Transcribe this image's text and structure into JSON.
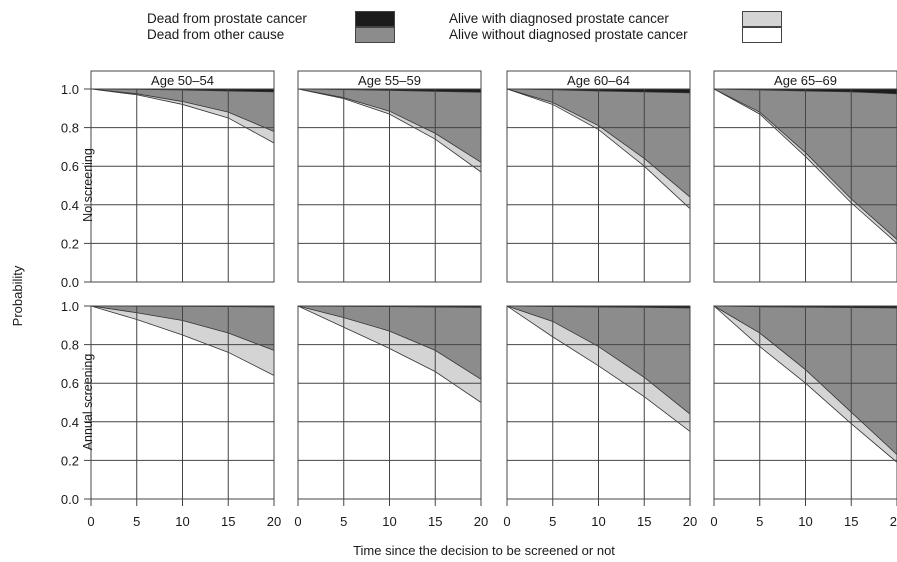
{
  "legend": {
    "items": [
      {
        "label": "Dead from prostate cancer",
        "color": "#1c1c1c"
      },
      {
        "label": "Dead from other cause",
        "color": "#8c8c8c"
      },
      {
        "label": "Alive with diagnosed prostate cancer",
        "color": "#d4d4d4"
      },
      {
        "label": "Alive without diagnosed prostate cancer",
        "color": "#ffffff"
      }
    ]
  },
  "chart_data": {
    "type": "area",
    "xlabel": "Time since the decision to be screened or not",
    "ylabel": "Probability",
    "xlim": [
      0,
      20
    ],
    "ylim": [
      0,
      1
    ],
    "x_ticks": [
      0,
      5,
      10,
      15,
      20
    ],
    "y_ticks": [
      "0.0",
      "0.2",
      "0.4",
      "0.6",
      "0.8",
      "1.0"
    ],
    "columns": [
      "Age 50–54",
      "Age 55–59",
      "Age 60–64",
      "Age 65–69"
    ],
    "rows": [
      "No screening",
      "Annual screening"
    ],
    "grid": true,
    "x": [
      0,
      5,
      10,
      15,
      20
    ],
    "panels": [
      {
        "row": "No screening",
        "column": "Age 50–54",
        "alive_without": [
          1.0,
          0.97,
          0.92,
          0.85,
          0.72
        ],
        "alive_total": [
          1.0,
          0.975,
          0.935,
          0.88,
          0.78
        ],
        "alive_or_pc_death": [
          1.0,
          0.998,
          0.995,
          0.99,
          0.985
        ]
      },
      {
        "row": "No screening",
        "column": "Age 55–59",
        "alive_without": [
          1.0,
          0.95,
          0.87,
          0.74,
          0.57
        ],
        "alive_total": [
          1.0,
          0.955,
          0.885,
          0.77,
          0.62
        ],
        "alive_or_pc_death": [
          1.0,
          0.997,
          0.993,
          0.988,
          0.983
        ]
      },
      {
        "row": "No screening",
        "column": "Age 60–64",
        "alive_without": [
          1.0,
          0.92,
          0.79,
          0.6,
          0.38
        ],
        "alive_total": [
          1.0,
          0.93,
          0.81,
          0.64,
          0.44
        ],
        "alive_or_pc_death": [
          1.0,
          0.996,
          0.99,
          0.985,
          0.98
        ]
      },
      {
        "row": "No screening",
        "column": "Age 65–69",
        "alive_without": [
          1.0,
          0.87,
          0.65,
          0.41,
          0.2
        ],
        "alive_total": [
          1.0,
          0.88,
          0.67,
          0.43,
          0.22
        ],
        "alive_or_pc_death": [
          1.0,
          0.995,
          0.99,
          0.985,
          0.975
        ]
      },
      {
        "row": "Annual screening",
        "column": "Age 50–54",
        "alive_without": [
          1.0,
          0.93,
          0.85,
          0.76,
          0.64
        ],
        "alive_total": [
          1.0,
          0.965,
          0.925,
          0.86,
          0.77
        ],
        "alive_or_pc_death": [
          1.0,
          0.999,
          0.998,
          0.997,
          0.995
        ]
      },
      {
        "row": "Annual screening",
        "column": "Age 55–59",
        "alive_without": [
          1.0,
          0.89,
          0.78,
          0.66,
          0.5
        ],
        "alive_total": [
          1.0,
          0.94,
          0.87,
          0.77,
          0.62
        ],
        "alive_or_pc_death": [
          1.0,
          0.998,
          0.997,
          0.995,
          0.993
        ]
      },
      {
        "row": "Annual screening",
        "column": "Age 60–64",
        "alive_without": [
          1.0,
          0.84,
          0.69,
          0.53,
          0.35
        ],
        "alive_total": [
          1.0,
          0.92,
          0.79,
          0.63,
          0.44
        ],
        "alive_or_pc_death": [
          1.0,
          0.997,
          0.995,
          0.993,
          0.99
        ]
      },
      {
        "row": "Annual screening",
        "column": "Age 65–69",
        "alive_without": [
          1.0,
          0.79,
          0.6,
          0.39,
          0.19
        ],
        "alive_total": [
          1.0,
          0.86,
          0.67,
          0.45,
          0.23
        ],
        "alive_or_pc_death": [
          1.0,
          0.996,
          0.994,
          0.992,
          0.99
        ]
      }
    ]
  }
}
